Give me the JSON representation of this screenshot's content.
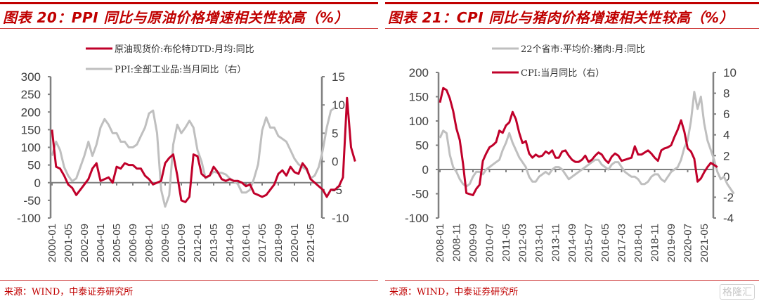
{
  "watermark": "格隆汇",
  "chart_data": [
    {
      "type": "line",
      "title": "图表 20：PPI 同比与原油价格增速相关性较高（%）",
      "source": "来源：WIND，中泰证券研究所",
      "xlabel": "",
      "x_tick_labels": [
        "2000-01",
        "2001-05",
        "2002-09",
        "2004-01",
        "2005-05",
        "2006-09",
        "2008-01",
        "2009-05",
        "2010-09",
        "2012-01",
        "2013-05",
        "2014-09",
        "2016-01",
        "2017-05",
        "2018-09",
        "2020-01",
        "2021-05"
      ],
      "x_start": "2000-01",
      "x_step_months": 4,
      "left_axis": {
        "ylim": [
          -100,
          300
        ],
        "ticks": [
          -100,
          -50,
          0,
          50,
          100,
          150,
          200,
          250,
          300
        ]
      },
      "right_axis": {
        "ylim": [
          -10,
          15
        ],
        "ticks": [
          -10,
          -5,
          0,
          5,
          10,
          15
        ]
      },
      "legend_position": "top-center",
      "series": [
        {
          "name": "原油现货价:布伦特DTD:月均:同比",
          "axis": "left",
          "color": "#c0002a",
          "values": [
            150,
            45,
            40,
            20,
            -5,
            -15,
            -35,
            -20,
            -5,
            10,
            40,
            55,
            5,
            10,
            15,
            0,
            45,
            40,
            55,
            50,
            50,
            40,
            40,
            20,
            10,
            -5,
            0,
            5,
            55,
            70,
            80,
            20,
            -50,
            -55,
            -40,
            80,
            75,
            25,
            15,
            20,
            45,
            30,
            10,
            5,
            10,
            5,
            5,
            0,
            -10,
            -5,
            -30,
            -35,
            -40,
            -35,
            -20,
            -5,
            25,
            35,
            20,
            45,
            30,
            25,
            55,
            40,
            10,
            0,
            -10,
            -20,
            -40,
            -20,
            -20,
            -10,
            15,
            240,
            100,
            60
          ]
        },
        {
          "name": "PPI:全部工业品:当月同比（右）",
          "axis": "right",
          "color": "#bfbfbf",
          "values": [
            1,
            3.5,
            2,
            -1,
            -2.5,
            -3.5,
            -3,
            -1,
            1,
            3.5,
            1,
            3,
            6,
            7.5,
            6.5,
            5,
            5,
            3.5,
            3.5,
            2.5,
            2.5,
            3,
            4.5,
            6,
            8.5,
            9,
            5,
            -5,
            -8,
            -6,
            3,
            6.5,
            5,
            6,
            7.2,
            6,
            2,
            0,
            -3,
            -2.5,
            -1.8,
            -2,
            -2,
            -2.3,
            -3,
            -3.5,
            -4,
            -5.5,
            -5.5,
            -5,
            -3,
            -0.5,
            5.5,
            7.8,
            6,
            6,
            4.5,
            4,
            3.5,
            2,
            0.5,
            -0.5,
            -1,
            -1.5,
            -3,
            -2.5,
            -1,
            2,
            6,
            9,
            9.5
          ]
        }
      ]
    },
    {
      "type": "line",
      "title": "图表 21：CPI 同比与猪肉价格增速相关性较高（%）",
      "source": "来源：WIND，中泰证券研究所",
      "xlabel": "",
      "x_tick_labels": [
        "2008-01",
        "2008-11",
        "2009-09",
        "2010-07",
        "2011-05",
        "2012-03",
        "2013-01",
        "2013-11",
        "2014-09",
        "2015-07",
        "2016-05",
        "2017-03",
        "2018-01",
        "2018-11",
        "2019-09",
        "2020-07",
        "2021-05"
      ],
      "x_start": "2008-01",
      "x_step_months": 2,
      "left_axis": {
        "ylim": [
          -100,
          200
        ],
        "ticks": [
          -100,
          -50,
          0,
          50,
          100,
          150,
          200
        ]
      },
      "right_axis": {
        "ylim": [
          -4,
          10
        ],
        "ticks": [
          -4,
          -2,
          0,
          2,
          4,
          6,
          8,
          10
        ]
      },
      "legend_position": "top-center",
      "series": [
        {
          "name": "22个省市:平均价:猪肉:月:同比",
          "axis": "left",
          "color": "#bfbfbf",
          "values": [
            65,
            80,
            75,
            30,
            5,
            -5,
            -20,
            -30,
            -35,
            -30,
            -15,
            -5,
            -5,
            -10,
            0,
            5,
            10,
            15,
            20,
            40,
            55,
            75,
            55,
            40,
            25,
            15,
            5,
            -15,
            -25,
            -25,
            -15,
            -10,
            -5,
            -10,
            0,
            5,
            5,
            0,
            -10,
            -20,
            -15,
            -10,
            -5,
            0,
            5,
            10,
            15,
            20,
            20,
            10,
            5,
            0,
            10,
            15,
            15,
            5,
            -5,
            -10,
            -15,
            -15,
            -20,
            -30,
            -30,
            -25,
            -15,
            -10,
            -10,
            -20,
            -25,
            -15,
            -5,
            0,
            5,
            20,
            45,
            60,
            100,
            160,
            125,
            150,
            95,
            60,
            40,
            20,
            -5,
            -20,
            -15,
            -30,
            -40,
            -50
          ]
        },
        {
          "name": "CPI:当月同比（右）",
          "axis": "right",
          "color": "#c0002a",
          "values": [
            7.1,
            8.5,
            8.3,
            7.5,
            6.3,
            4.6,
            3.5,
            1.2,
            -1.6,
            -1.7,
            -1.8,
            -1.2,
            -0.8,
            1.5,
            2.2,
            2.8,
            3.0,
            3.3,
            4.4,
            4.2,
            4.9,
            5.2,
            6.2,
            5.5,
            4.2,
            3.2,
            3.4,
            2.2,
            1.8,
            2.1,
            1.9,
            2.0,
            2.4,
            2.2,
            2.5,
            1.8,
            1.8,
            2.4,
            2.5,
            2.0,
            1.6,
            1.4,
            1.4,
            1.6,
            2.0,
            1.4,
            1.6,
            2.0,
            2.3,
            2.1,
            1.6,
            1.3,
            1.9,
            2.2,
            2.0,
            1.5,
            1.6,
            1.7,
            1.8,
            2.9,
            2.1,
            2.1,
            2.3,
            2.5,
            2.2,
            1.8,
            1.5,
            2.5,
            2.7,
            2.8,
            3.0,
            3.8,
            4.5,
            5.4,
            4.3,
            2.7,
            2.4,
            1.7,
            -0.5,
            -0.2,
            0.4,
            0.9,
            1.3,
            1.1,
            0.9
          ]
        }
      ]
    }
  ]
}
